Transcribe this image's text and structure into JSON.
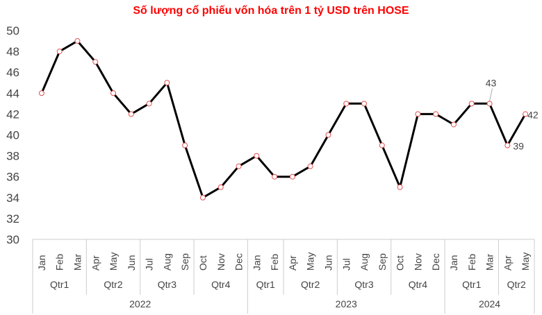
{
  "chart_data": {
    "type": "line",
    "title": "Số lượng cổ phiếu vốn hóa trên 1 tỷ USD trên HOSE",
    "ylim": [
      30,
      50
    ],
    "yticks": [
      30,
      32,
      34,
      36,
      38,
      40,
      42,
      44,
      46,
      48,
      50
    ],
    "grid": false,
    "categories": [
      "Jan",
      "Feb",
      "Mar",
      "Apr",
      "May",
      "Jun",
      "Jul",
      "Aug",
      "Sep",
      "Oct",
      "Nov",
      "Dec",
      "Jan",
      "Feb",
      "Apr",
      "May",
      "Jun",
      "Jul",
      "Aug",
      "Sep",
      "Oct",
      "Nov",
      "Dec",
      "Jan",
      "Feb",
      "Mar",
      "Apr",
      "May"
    ],
    "values": [
      44,
      48,
      49,
      47,
      44,
      42,
      43,
      45,
      39,
      34,
      35,
      37,
      38,
      36,
      36,
      37,
      40,
      43,
      43,
      39,
      35,
      42,
      42,
      41,
      43,
      43,
      39,
      42
    ],
    "quarter_groups": [
      {
        "label": "Qtr1",
        "span": 3
      },
      {
        "label": "Qtr2",
        "span": 3
      },
      {
        "label": "Qtr3",
        "span": 3
      },
      {
        "label": "Qtr4",
        "span": 3
      },
      {
        "label": "Qtr1",
        "span": 2
      },
      {
        "label": "Qtr2",
        "span": 3
      },
      {
        "label": "Qtr3",
        "span": 3
      },
      {
        "label": "Qtr4",
        "span": 3
      },
      {
        "label": "Qtr1",
        "span": 3
      },
      {
        "label": "Qtr2",
        "span": 2
      }
    ],
    "year_groups": [
      {
        "label": "2022",
        "span": 12
      },
      {
        "label": "2023",
        "span": 11
      },
      {
        "label": "2024",
        "span": 5
      }
    ],
    "data_labels": [
      {
        "index": 25,
        "text": "43"
      },
      {
        "index": 26,
        "text": "39"
      },
      {
        "index": 27,
        "text": "42"
      }
    ],
    "colors": {
      "line": "#000000",
      "marker_fill": "#ffffff",
      "marker_stroke": "#e05050",
      "title": "#ff0000"
    }
  }
}
